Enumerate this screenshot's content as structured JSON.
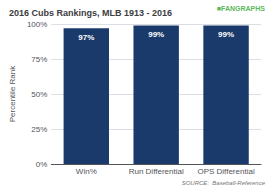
{
  "chart_data": {
    "type": "bar",
    "title": "2016 Cubs Rankings, MLB 1913 - 2016",
    "categories": [
      "Win%",
      "Run Differential",
      "OPS Differential"
    ],
    "values": [
      97,
      99,
      99
    ],
    "value_labels": [
      "97%",
      "99%",
      "99%"
    ],
    "data_labels": true,
    "color": "#1a3a6b",
    "ylabel": "Percentile Rank",
    "ylim": [
      0,
      100
    ],
    "yticks": [
      {
        "value": 0,
        "label": "0%"
      },
      {
        "value": 25,
        "label": "25%"
      },
      {
        "value": 50,
        "label": "50%"
      },
      {
        "value": 75,
        "label": "75%"
      },
      {
        "value": 100,
        "label": "100%"
      }
    ],
    "grid": true,
    "annotations": [
      {
        "text": "■",
        "color": "#5cb85c"
      },
      {
        "text": "FANGRAPHS",
        "color": "#5cb85c"
      },
      {
        "text": "SOURCE:  Baseball-Reference"
      }
    ]
  }
}
